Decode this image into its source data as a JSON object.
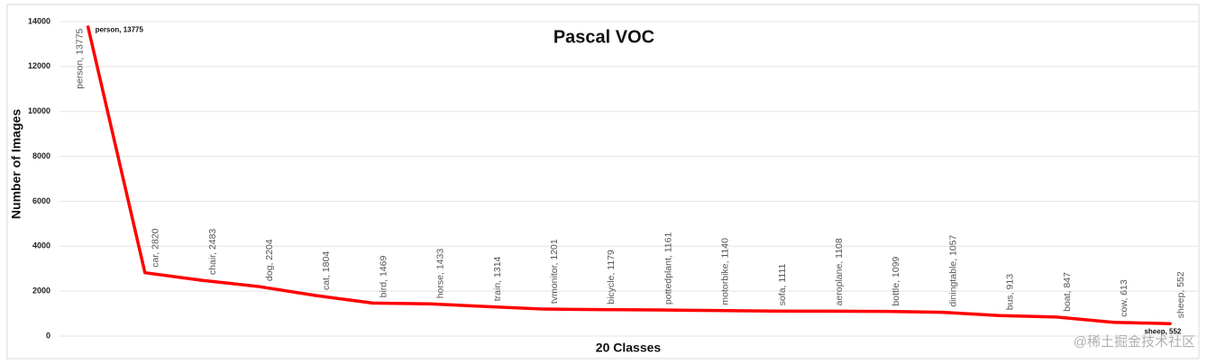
{
  "chart_data": {
    "type": "line",
    "title": "Pascal VOC",
    "x_label": "20 Classes",
    "y_label": "Number of Images",
    "categories": [
      "person",
      "car",
      "chair",
      "dog",
      "cat",
      "bird",
      "horse",
      "train",
      "tvmonitor",
      "bicycle",
      "pottedplant",
      "motorbike",
      "sofa",
      "aeroplane",
      "bottle",
      "diningtable",
      "bus",
      "boat",
      "cow",
      "sheep"
    ],
    "values": [
      13775,
      2820,
      2483,
      2204,
      1804,
      1469,
      1433,
      1314,
      1201,
      1179,
      1161,
      1140,
      1111,
      1108,
      1099,
      1057,
      913,
      847,
      613,
      552
    ],
    "value_labels": [
      "person, 13775",
      "car, 2820",
      "chair, 2483",
      "dog, 2204",
      "cat, 1804",
      "bird, 1469",
      "horse, 1433",
      "train, 1314",
      "tvmonitor, 1201",
      "bicycle, 1179",
      "pottedplant, 1161",
      "motorbike, 1140",
      "sofa, 1111",
      "aeroplane, 1108",
      "bottle, 1099",
      "diningtable, 1057",
      "bus, 913",
      "boat, 847",
      "cow, 613",
      "sheep, 552"
    ],
    "annotations": [
      "person, 13775",
      "sheep, 552"
    ],
    "watermark": "@稀土掘金技术社区",
    "color": "#ff0000",
    "ylim": [
      0,
      14000
    ],
    "yticks": [
      0,
      2000,
      4000,
      6000,
      8000,
      10000,
      12000,
      14000
    ],
    "grid": true
  }
}
